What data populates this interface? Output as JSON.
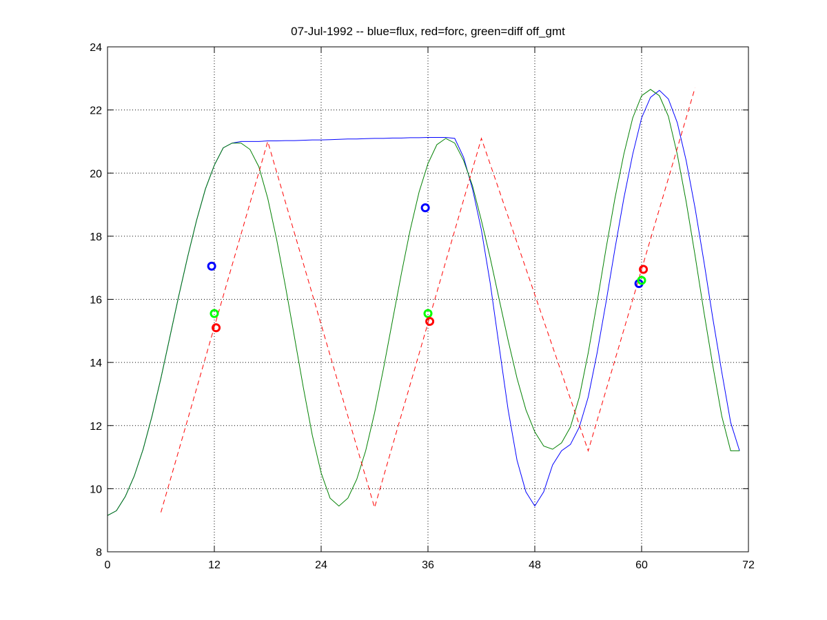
{
  "chart_data": {
    "type": "line",
    "title": "07-Jul-1992 -- blue=flux, red=forc, green=diff off_gmt",
    "xlabel": "",
    "ylabel": "",
    "xlim": [
      0,
      72
    ],
    "ylim": [
      8,
      24
    ],
    "xticks": [
      0,
      12,
      24,
      36,
      48,
      60,
      72
    ],
    "yticks": [
      8,
      10,
      12,
      14,
      16,
      18,
      20,
      22,
      24
    ],
    "grid": true,
    "colors": {
      "flux": "#0000ff",
      "forc": "#ff0000",
      "diff": "#008000",
      "diff_marker": "#00ff00"
    },
    "series": [
      {
        "style": "solid",
        "color": "#0000ff",
        "x": [
          0,
          1,
          2,
          3,
          4,
          5,
          6,
          7,
          8,
          9,
          10,
          11,
          12,
          13,
          14,
          15,
          16,
          17,
          18,
          19,
          20,
          21,
          22,
          23,
          24,
          25,
          26,
          27,
          28,
          29,
          30,
          31,
          32,
          33,
          34,
          35,
          36,
          37,
          38,
          39,
          40,
          41,
          42,
          43,
          44,
          45,
          46,
          47,
          48,
          49,
          50,
          51,
          52,
          53,
          54,
          55,
          56,
          57,
          58,
          59,
          60,
          61,
          62,
          63,
          64,
          65,
          66,
          67,
          68,
          69,
          70,
          71
        ],
        "y": [
          9.15,
          9.3,
          9.75,
          10.4,
          11.25,
          12.3,
          13.5,
          14.8,
          16.1,
          17.35,
          18.5,
          19.5,
          20.25,
          20.8,
          20.95,
          21.0,
          21.0,
          21.0,
          21.02,
          21.02,
          21.03,
          21.03,
          21.04,
          21.05,
          21.05,
          21.06,
          21.07,
          21.08,
          21.08,
          21.09,
          21.1,
          21.1,
          21.11,
          21.11,
          21.12,
          21.12,
          21.13,
          21.13,
          21.13,
          21.1,
          20.5,
          19.5,
          18.2,
          16.5,
          14.5,
          12.5,
          10.9,
          9.9,
          9.45,
          9.9,
          10.75,
          11.2,
          11.4,
          11.95,
          12.9,
          14.3,
          15.9,
          17.6,
          19.2,
          20.6,
          21.75,
          22.4,
          22.62,
          22.35,
          21.6,
          20.4,
          18.9,
          17.2,
          15.4,
          13.7,
          12.1,
          11.2
        ]
      },
      {
        "style": "solid",
        "color": "#008000",
        "x": [
          0,
          1,
          2,
          3,
          4,
          5,
          6,
          7,
          8,
          9,
          10,
          11,
          12,
          13,
          14,
          15,
          16,
          17,
          18,
          19,
          20,
          21,
          22,
          23,
          24,
          25,
          26,
          27,
          28,
          29,
          30,
          31,
          32,
          33,
          34,
          35,
          36,
          37,
          38,
          39,
          40,
          41,
          42,
          43,
          44,
          45,
          46,
          47,
          48,
          49,
          50,
          51,
          52,
          53,
          54,
          55,
          56,
          57,
          58,
          59,
          60,
          61,
          62,
          63,
          64,
          65,
          66,
          67,
          68,
          69,
          70,
          71
        ],
        "y": [
          9.15,
          9.3,
          9.75,
          10.4,
          11.25,
          12.3,
          13.5,
          14.8,
          16.1,
          17.35,
          18.5,
          19.5,
          20.25,
          20.8,
          20.95,
          20.95,
          20.75,
          20.2,
          19.2,
          17.9,
          16.4,
          14.8,
          13.2,
          11.7,
          10.5,
          9.7,
          9.45,
          9.7,
          10.3,
          11.2,
          12.4,
          13.8,
          15.3,
          16.8,
          18.2,
          19.4,
          20.3,
          20.9,
          21.1,
          20.95,
          20.4,
          19.6,
          18.5,
          17.3,
          16.0,
          14.7,
          13.5,
          12.5,
          11.8,
          11.35,
          11.25,
          11.45,
          11.95,
          12.9,
          14.3,
          15.9,
          17.6,
          19.2,
          20.6,
          21.75,
          22.45,
          22.65,
          22.45,
          21.8,
          20.6,
          19.1,
          17.4,
          15.6,
          13.9,
          12.3,
          11.2,
          11.2
        ]
      },
      {
        "style": "dashed",
        "color": "#ff0000",
        "x": [
          6,
          18,
          30,
          42,
          54,
          66
        ],
        "y": [
          9.25,
          21.0,
          9.4,
          21.1,
          11.2,
          22.7
        ]
      }
    ],
    "markers": [
      {
        "color": "#0000ff",
        "x": 11.7,
        "y": 17.05
      },
      {
        "color": "#00ff00",
        "x": 12.0,
        "y": 15.55
      },
      {
        "color": "#ff0000",
        "x": 12.2,
        "y": 15.1
      },
      {
        "color": "#0000ff",
        "x": 35.7,
        "y": 18.9
      },
      {
        "color": "#00ff00",
        "x": 36.0,
        "y": 15.55
      },
      {
        "color": "#ff0000",
        "x": 36.2,
        "y": 15.3
      },
      {
        "color": "#0000ff",
        "x": 59.7,
        "y": 16.5
      },
      {
        "color": "#00ff00",
        "x": 60.0,
        "y": 16.6
      },
      {
        "color": "#ff0000",
        "x": 60.2,
        "y": 16.95
      }
    ]
  }
}
